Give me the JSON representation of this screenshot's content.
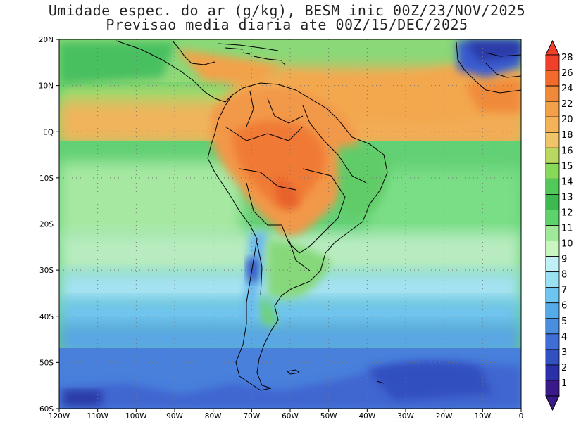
{
  "title_line1": "Umidade espec. do ar (g/kg), BESM inic 00Z/23/NOV/2025",
  "title_line2": "Previsao media diaria ate 00Z/15/DEC/2025",
  "map": {
    "lon_range": [
      -120,
      0
    ],
    "lat_range": [
      -60,
      20
    ],
    "lat_ticks": [
      "20N",
      "10N",
      "EQ",
      "10S",
      "20S",
      "30S",
      "40S",
      "50S",
      "60S"
    ],
    "lon_ticks": [
      "120W",
      "110W",
      "100W",
      "90W",
      "80W",
      "70W",
      "60W",
      "50W",
      "40W",
      "30W",
      "20W",
      "10W",
      "0"
    ],
    "gridlines": "dotted"
  },
  "colorbar": {
    "levels": [
      "28",
      "26",
      "24",
      "22",
      "20",
      "18",
      "16",
      "15",
      "14",
      "13",
      "12",
      "11",
      "10",
      "9",
      "8",
      "7",
      "6",
      "5",
      "4",
      "3",
      "2",
      "1"
    ],
    "colors": [
      "#f0402a",
      "#f26b2c",
      "#f08a3a",
      "#f2a04a",
      "#f5b359",
      "#f0c468",
      "#b8d860",
      "#88d85a",
      "#52c85a",
      "#3eb850",
      "#5ed36d",
      "#a0e89a",
      "#c8f5c0",
      "#c0f0f5",
      "#9ae2f2",
      "#6ec6f0",
      "#55abe8",
      "#4a8ee0",
      "#3f6fd6",
      "#3350c0",
      "#2a30a8",
      "#3a1a8a"
    ]
  },
  "colors": {
    "ocean_base": "#7ad98a",
    "tropical_band": "#f2b25c",
    "amazon_core": "#f07a36",
    "south_cool": "#6ab8ee",
    "polar": "#3f66d0",
    "deep_blue": "#2a3aa8"
  }
}
